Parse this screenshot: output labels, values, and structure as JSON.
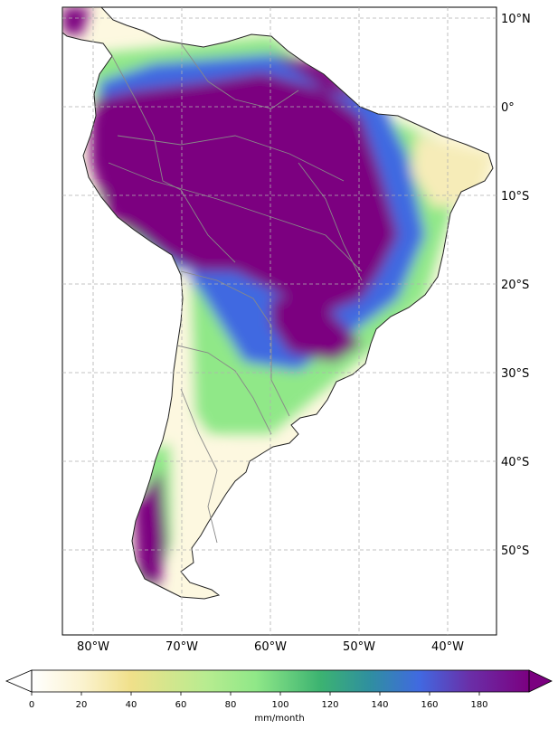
{
  "map": {
    "lat_ticks": [
      "10°N",
      "0°",
      "10°S",
      "20°S",
      "30°S",
      "40°S",
      "50°S"
    ],
    "lon_ticks": [
      "80°W",
      "70°W",
      "60°W",
      "50°W",
      "40°W"
    ],
    "extent": {
      "lon": [
        -83.5,
        -34.5
      ],
      "lat": [
        -59,
        11.5
      ]
    },
    "gridlines": true
  },
  "colorbar": {
    "ticks": [
      "0",
      "20",
      "40",
      "60",
      "80",
      "100",
      "120",
      "140",
      "160",
      "180"
    ],
    "label": "mm/month",
    "range": [
      0,
      200
    ],
    "extend": "both",
    "colors": [
      "#ffffff",
      "#f0e08a",
      "#90e888",
      "#3cb371",
      "#4169e1",
      "#7b0080"
    ]
  },
  "colors": {
    "land_outline": "#222222",
    "rivers": "#888888",
    "wet": "#7b0080",
    "dry": "#fdf8e0"
  }
}
